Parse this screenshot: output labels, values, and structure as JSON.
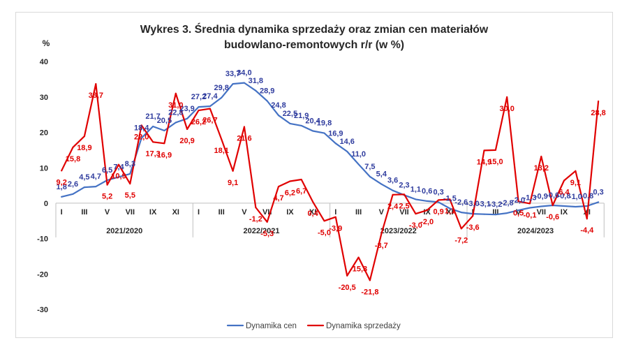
{
  "chart_data": {
    "type": "line",
    "title_lines": [
      "Wykres 3. Średnia dynamika sprzedaży oraz zmian cen materiałów",
      "budowlano-remontowych r/r (w %)"
    ],
    "ylabel": "%",
    "ylim": [
      -30,
      40
    ],
    "yticks": [
      40,
      30,
      20,
      10,
      0,
      -10,
      -20,
      -30
    ],
    "grid": false,
    "legend_position": "bottom",
    "data_labels": true,
    "groups": [
      {
        "label": "2021/2020",
        "ticks": [
          "I",
          "III",
          "V",
          "VII",
          "IX",
          "XI"
        ]
      },
      {
        "label": "2022/2021",
        "ticks": [
          "I",
          "III",
          "V",
          "VII",
          "IX",
          "XI"
        ]
      },
      {
        "label": "2023/2022",
        "ticks": [
          "I",
          "III",
          "V",
          "VII",
          "IX",
          "XI"
        ]
      },
      {
        "label": "2024/2023",
        "ticks": [
          "I",
          "III",
          "V",
          "VII",
          "IX",
          "XI"
        ]
      }
    ],
    "series": [
      {
        "name": "Dynamika cen",
        "color": "#4472C4",
        "label_color": "#2F3C9E",
        "values": [
          1.8,
          2.6,
          4.5,
          4.7,
          6.5,
          7.4,
          8.3,
          18.4,
          21.7,
          20.5,
          22.8,
          23.9,
          27.2,
          27.4,
          29.8,
          33.7,
          34.0,
          31.8,
          28.9,
          24.8,
          22.5,
          21.9,
          20.4,
          19.8,
          16.9,
          14.6,
          11.0,
          7.5,
          5.4,
          3.6,
          2.3,
          1.1,
          0.6,
          0.3,
          -1.5,
          -2.6,
          -3.0,
          -3.1,
          -3.2,
          -2.8,
          -2.0,
          -1.3,
          -0.9,
          -0.6,
          -0.8,
          -1.0,
          -0.8,
          0.3
        ]
      },
      {
        "name": "Dynamika sprzedaży",
        "color": "#E00000",
        "label_color": "#E00000",
        "values": [
          9.2,
          15.8,
          18.9,
          33.7,
          5.2,
          10.9,
          5.5,
          22.0,
          17.3,
          16.9,
          31.0,
          20.9,
          26.2,
          26.7,
          18.1,
          9.1,
          21.6,
          -1.2,
          -5.3,
          4.7,
          6.2,
          6.7,
          0.4,
          -5.0,
          -3.9,
          -20.5,
          -15.3,
          -21.8,
          -8.7,
          2.4,
          2.5,
          -3.0,
          -2.0,
          0.9,
          1.1,
          -7.2,
          -3.6,
          14.9,
          15.0,
          30.0,
          0.5,
          -0.1,
          13.2,
          -0.6,
          6.4,
          9.1,
          -4.4,
          28.8
        ]
      }
    ]
  }
}
